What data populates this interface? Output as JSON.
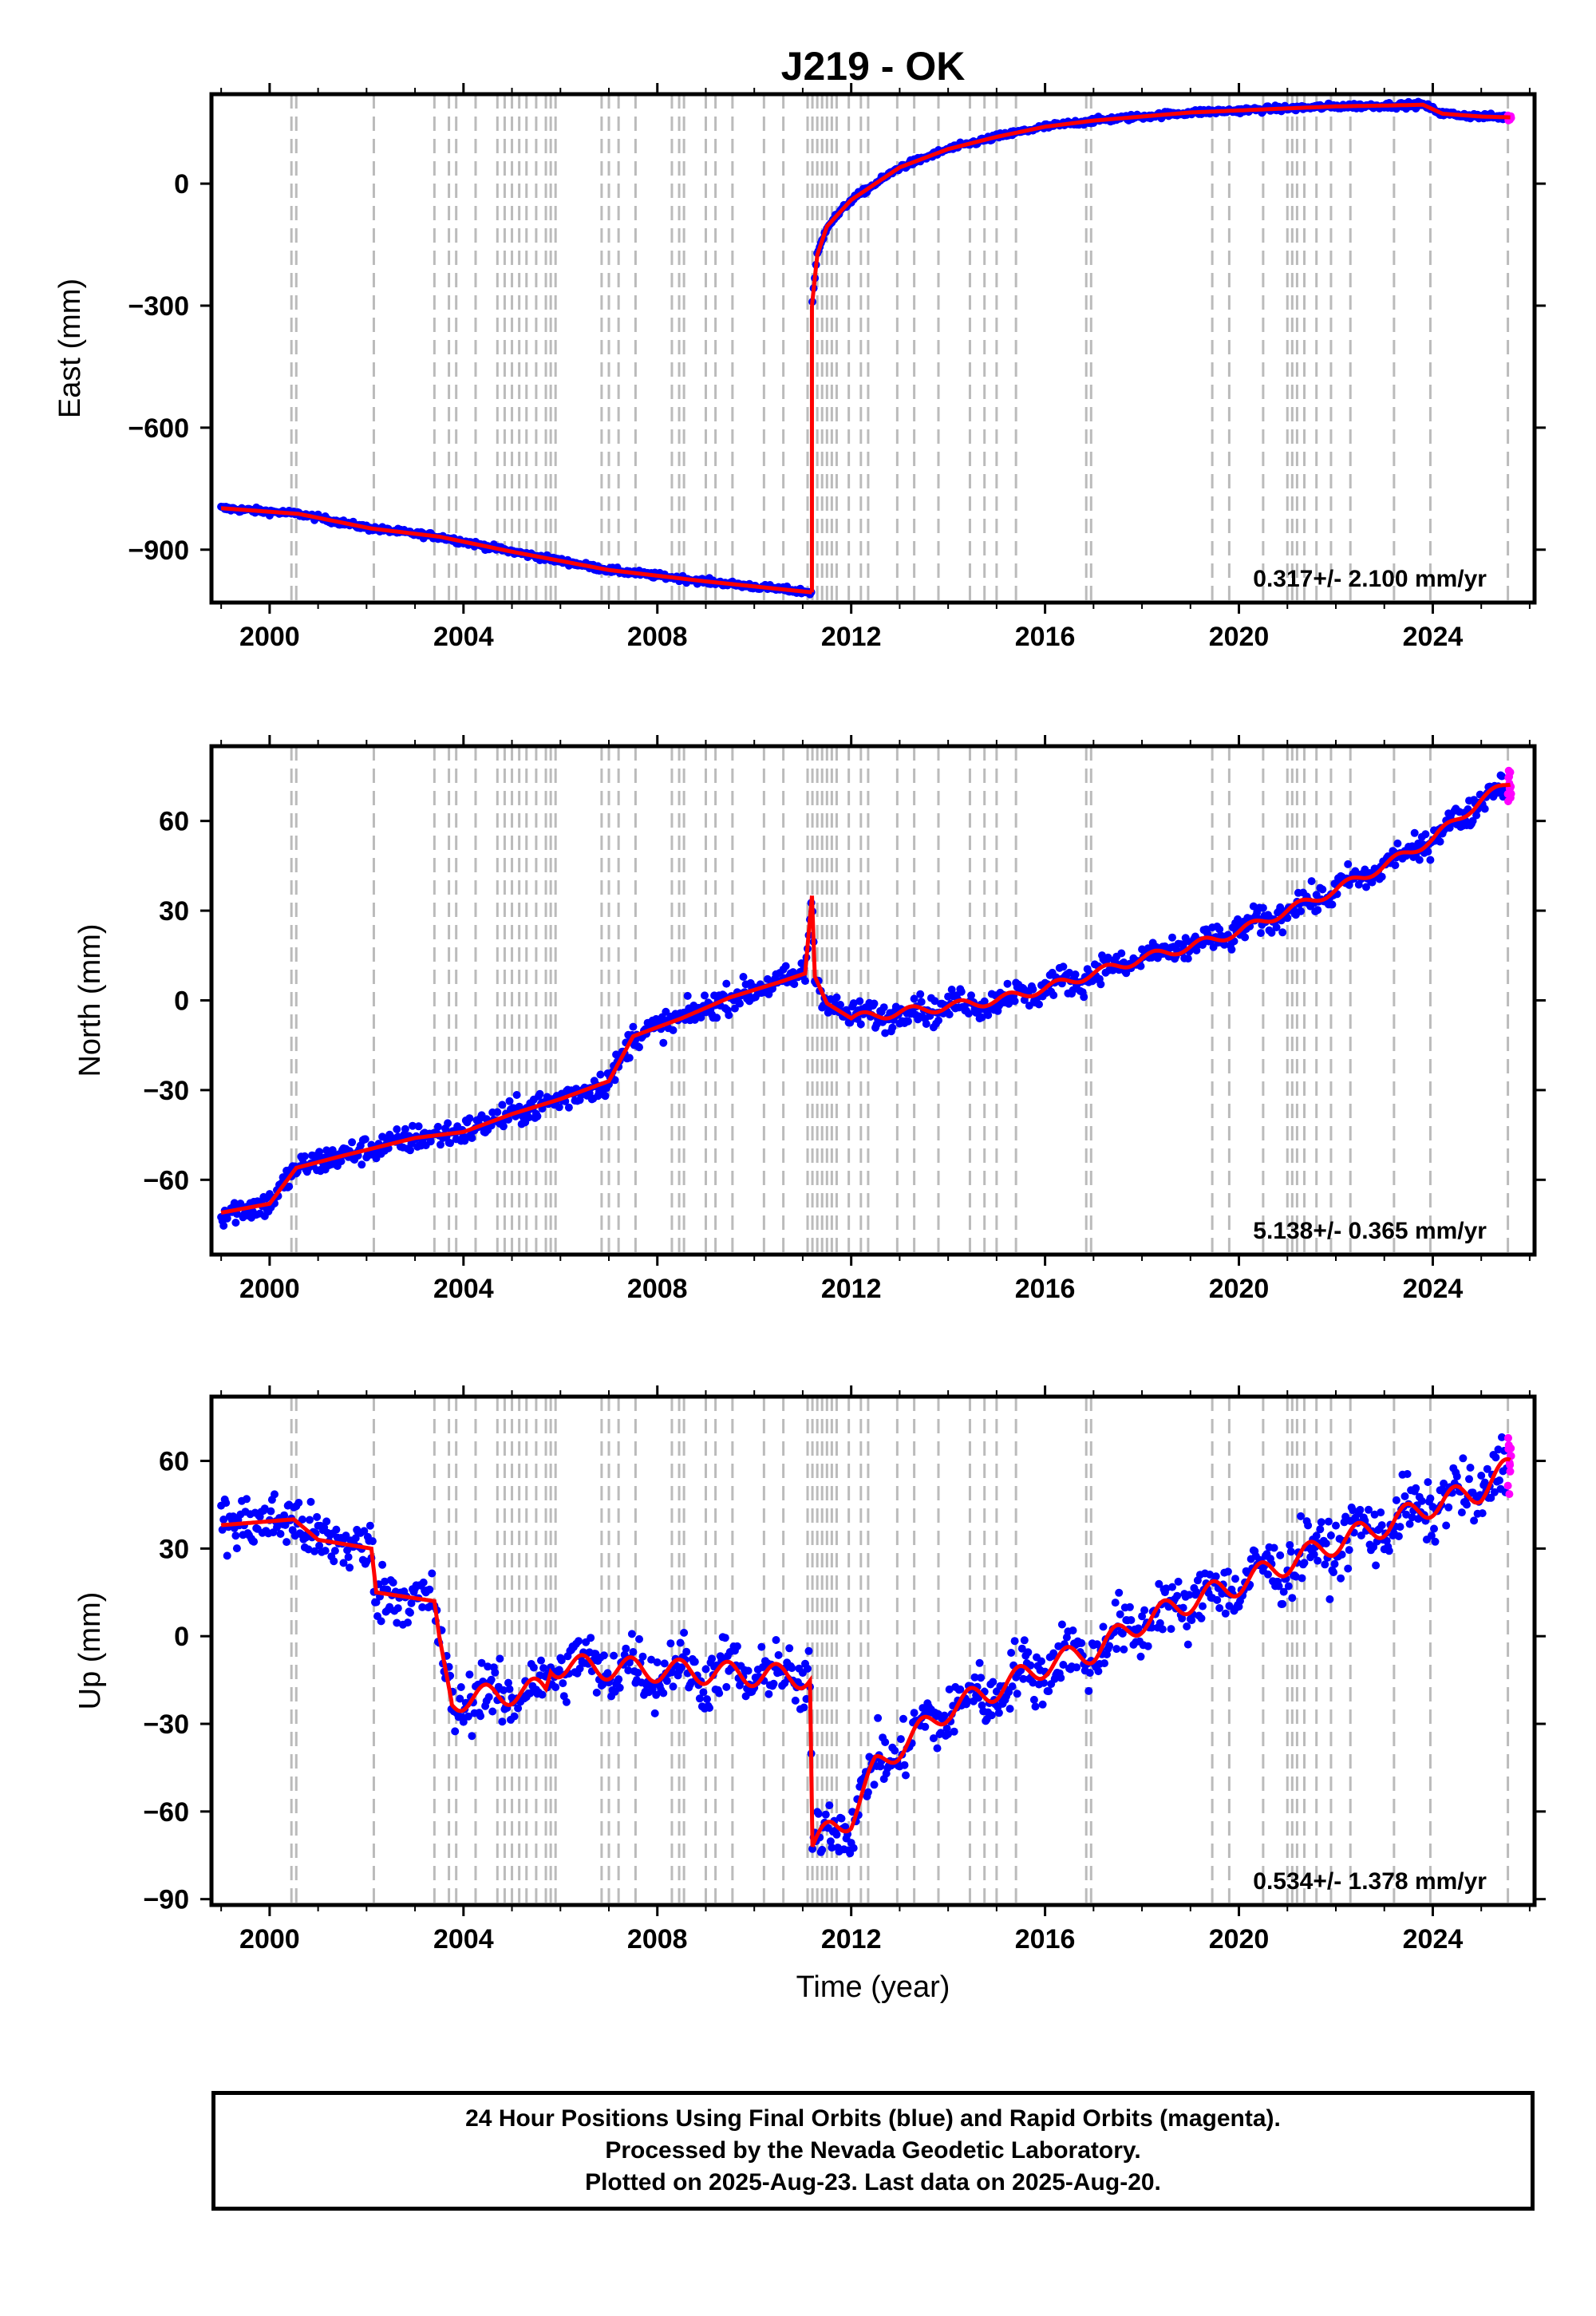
{
  "page_title": "J219 - OK",
  "footer": {
    "line1": "24 Hour Positions Using Final Orbits (blue) and Rapid Orbits (magenta).",
    "line2": "Processed by the Nevada Geodetic Laboratory.",
    "line3": "Plotted on 2025-Aug-23. Last data on 2025-Aug-20."
  },
  "colors": {
    "final_orbits": "#0000ff",
    "rapid_orbits": "#ff00ff",
    "model_fit": "#ff0000",
    "event_lines": "#bbbbbb"
  },
  "chart_data": [
    {
      "type": "scatter",
      "title": "J219 - OK",
      "ylabel": "East (mm)",
      "xlabel": "",
      "xlim": [
        1998.8,
        2026.1
      ],
      "ylim": [
        -1030,
        220
      ],
      "xticks": [
        2000,
        2004,
        2008,
        2012,
        2016,
        2020,
        2024
      ],
      "yticks": [
        -900,
        -600,
        -300,
        0
      ],
      "rate_label": "0.317+/- 2.100 mm/yr",
      "series": [
        {
          "kind": "model",
          "x": [
            1999.0,
            2000.6,
            2002.1,
            2003.5,
            2005.0,
            2007.0,
            2009.0,
            2011.19
          ],
          "y": [
            -798,
            -812,
            -848,
            -868,
            -905,
            -950,
            -978,
            -1005
          ]
        },
        {
          "kind": "postseismic",
          "x": [
            2011.19,
            2011.3,
            2011.5,
            2012.0,
            2013.0,
            2014.0,
            2015.0,
            2016.0,
            2017.0,
            2018.0,
            2019.0,
            2020.0,
            2021.0,
            2022.0,
            2023.0,
            2023.8,
            2024.2,
            2025.0,
            2025.6
          ],
          "y": [
            -300,
            -175,
            -105,
            -40,
            40,
            85,
            115,
            140,
            155,
            165,
            175,
            180,
            185,
            190,
            192,
            194,
            172,
            165,
            163
          ]
        }
      ]
    },
    {
      "type": "scatter",
      "ylabel": "North (mm)",
      "xlabel": "",
      "xlim": [
        1998.8,
        2026.1
      ],
      "ylim": [
        -85,
        85
      ],
      "xticks": [
        2000,
        2004,
        2008,
        2012,
        2016,
        2020,
        2024
      ],
      "yticks": [
        -60,
        -30,
        0,
        30,
        60
      ],
      "rate_label": "5.138+/- 0.365 mm/yr",
      "series": [
        {
          "kind": "model",
          "x": [
            1999.0,
            2000.0,
            2000.55,
            2001.5,
            2003.0,
            2004.0,
            2005.0,
            2006.0,
            2007.0,
            2007.5,
            2008.5,
            2009.5,
            2010.5,
            2011.05,
            2011.19,
            2011.25,
            2011.5,
            2012.0,
            2013.0,
            2014.0,
            2015.0,
            2016.0,
            2017.0,
            2018.0,
            2019.0,
            2020.0,
            2021.0,
            2022.0,
            2023.0,
            2024.0,
            2025.0,
            2025.6
          ],
          "y": [
            -71,
            -68,
            -56,
            -52,
            -46,
            -44,
            -38,
            -33,
            -27,
            -12,
            -6,
            1,
            6,
            9,
            35,
            8,
            -1,
            -6,
            -4,
            -2,
            0,
            4,
            9,
            14,
            18,
            23,
            30,
            37,
            45,
            54,
            67,
            73
          ]
        }
      ]
    },
    {
      "type": "scatter",
      "ylabel": "Up (mm)",
      "xlabel": "Time (year)",
      "xlim": [
        1998.8,
        2026.1
      ],
      "ylim": [
        -92,
        82
      ],
      "xticks": [
        2000,
        2004,
        2008,
        2012,
        2016,
        2020,
        2024
      ],
      "yticks": [
        -90,
        -60,
        -30,
        0,
        30,
        60
      ],
      "rate_label": "0.534+/- 1.378 mm/yr",
      "series": [
        {
          "kind": "model",
          "x": [
            1999.0,
            2000.5,
            2001.0,
            2002.1,
            2002.2,
            2003.4,
            2003.5,
            2003.75,
            2005.7,
            2005.8,
            2011.15,
            2011.2,
            2011.6,
            2012.0,
            2012.5,
            2013.0,
            2014.0,
            2015.0,
            2016.0,
            2017.0,
            2018.0,
            2019.0,
            2020.0,
            2021.0,
            2022.0,
            2023.0,
            2024.0,
            2025.0,
            2025.6
          ],
          "y": [
            38,
            40,
            33,
            30,
            15,
            12,
            0,
            -22,
            -18,
            -10,
            -14,
            -72,
            -66,
            -62,
            -45,
            -38,
            -25,
            -18,
            -10,
            -5,
            5,
            12,
            18,
            25,
            32,
            38,
            45,
            50,
            58
          ]
        }
      ]
    }
  ]
}
